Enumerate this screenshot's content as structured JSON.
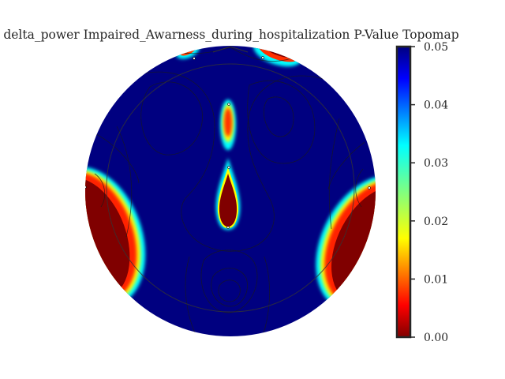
{
  "chart_data": {
    "type": "heatmap",
    "title": "delta_power Impaired_Awarness_during_hospitalization P-Value Topomap",
    "colorbar": {
      "colormap": "jet_r",
      "range": [
        0.0,
        0.05
      ],
      "ticks": [
        0.0,
        0.01,
        0.02,
        0.03,
        0.04,
        0.05
      ],
      "tick_labels": [
        "0.00",
        "0.01",
        "0.02",
        "0.03",
        "0.04",
        "0.05"
      ]
    },
    "significant_regions": [
      {
        "region": "left temporal",
        "p_value": 0.0
      },
      {
        "region": "right temporal",
        "p_value": 0.0
      },
      {
        "region": "central midline",
        "p_value": 0.0
      },
      {
        "region": "frontal midline",
        "p_value": 0.01
      },
      {
        "region": "left frontal edge",
        "p_value": 0.01
      },
      {
        "region": "right frontal edge",
        "p_value": 0.0
      }
    ],
    "background_p_value": 0.05
  }
}
